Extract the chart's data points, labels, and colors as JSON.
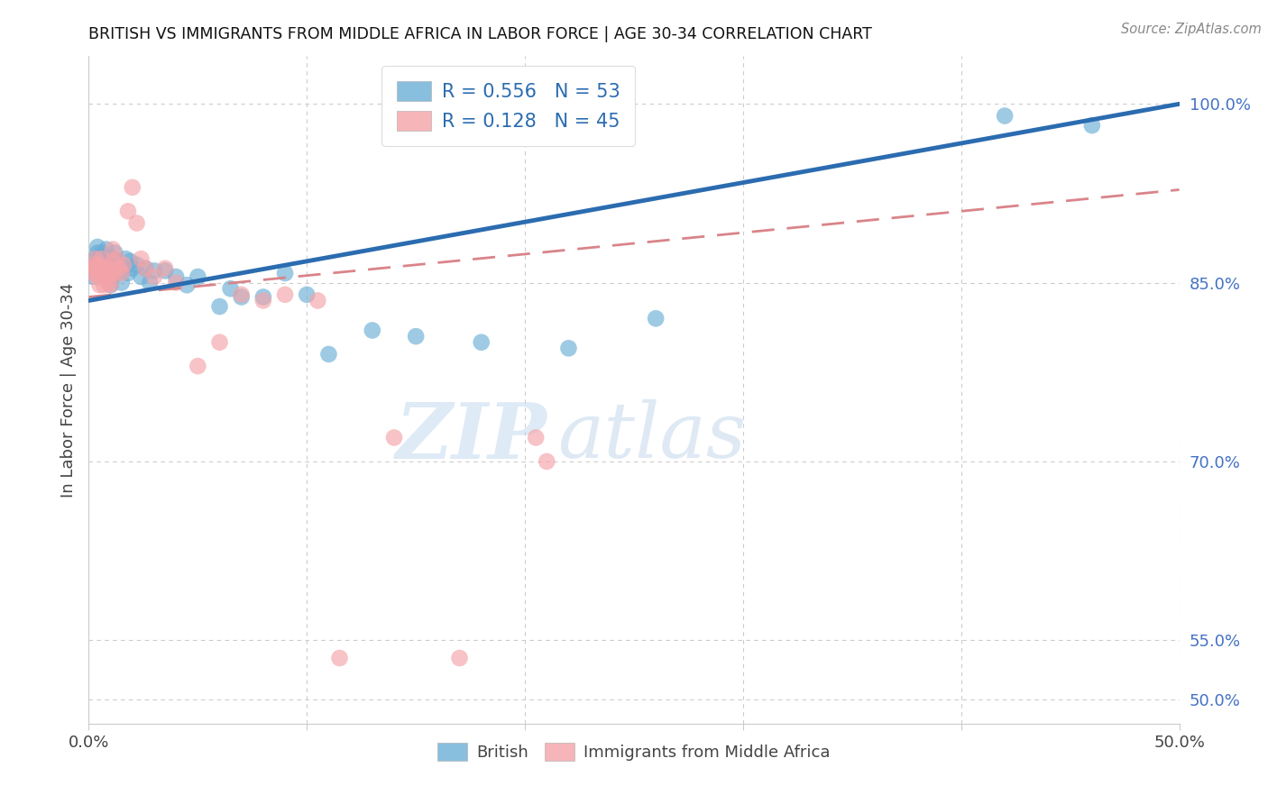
{
  "title": "BRITISH VS IMMIGRANTS FROM MIDDLE AFRICA IN LABOR FORCE | AGE 30-34 CORRELATION CHART",
  "source": "Source: ZipAtlas.com",
  "ylabel": "In Labor Force | Age 30-34",
  "xlim": [
    0.0,
    0.5
  ],
  "ylim": [
    0.48,
    1.04
  ],
  "xticks": [
    0.0,
    0.1,
    0.2,
    0.3,
    0.4,
    0.5
  ],
  "xtick_labels": [
    "0.0%",
    "",
    "",
    "",
    "",
    "50.0%"
  ],
  "ytick_labels_right": [
    "50.0%",
    "55.0%",
    "70.0%",
    "85.0%",
    "100.0%"
  ],
  "ytick_vals_right": [
    0.5,
    0.55,
    0.7,
    0.85,
    1.0
  ],
  "blue_R": 0.556,
  "blue_N": 53,
  "pink_R": 0.128,
  "pink_N": 45,
  "blue_color": "#6baed6",
  "pink_color": "#f4a3a8",
  "trendline_blue": "#2b6cb0",
  "trendline_pink": "#d9848a",
  "watermark_zip": "ZIP",
  "watermark_atlas": "atlas",
  "blue_intercept": 0.835,
  "blue_slope": 0.33,
  "pink_intercept": 0.838,
  "pink_slope": 0.18,
  "british_x": [
    0.002,
    0.003,
    0.003,
    0.004,
    0.004,
    0.004,
    0.005,
    0.005,
    0.006,
    0.006,
    0.007,
    0.007,
    0.008,
    0.008,
    0.009,
    0.009,
    0.01,
    0.01,
    0.011,
    0.011,
    0.012,
    0.012,
    0.013,
    0.014,
    0.015,
    0.016,
    0.017,
    0.018,
    0.019,
    0.02,
    0.022,
    0.024,
    0.026,
    0.028,
    0.03,
    0.035,
    0.04,
    0.045,
    0.05,
    0.06,
    0.065,
    0.07,
    0.08,
    0.09,
    0.1,
    0.11,
    0.13,
    0.15,
    0.18,
    0.22,
    0.26,
    0.42,
    0.46
  ],
  "british_y": [
    0.855,
    0.87,
    0.865,
    0.875,
    0.862,
    0.88,
    0.858,
    0.87,
    0.865,
    0.875,
    0.862,
    0.858,
    0.87,
    0.878,
    0.86,
    0.872,
    0.848,
    0.862,
    0.855,
    0.87,
    0.858,
    0.875,
    0.868,
    0.862,
    0.85,
    0.862,
    0.87,
    0.858,
    0.868,
    0.862,
    0.865,
    0.855,
    0.862,
    0.85,
    0.86,
    0.86,
    0.855,
    0.848,
    0.855,
    0.83,
    0.845,
    0.838,
    0.838,
    0.858,
    0.84,
    0.79,
    0.81,
    0.805,
    0.8,
    0.795,
    0.82,
    0.99,
    0.982
  ],
  "pink_x": [
    0.002,
    0.002,
    0.003,
    0.003,
    0.004,
    0.004,
    0.005,
    0.005,
    0.005,
    0.006,
    0.006,
    0.007,
    0.007,
    0.008,
    0.008,
    0.009,
    0.009,
    0.01,
    0.01,
    0.011,
    0.011,
    0.012,
    0.013,
    0.014,
    0.015,
    0.016,
    0.018,
    0.02,
    0.022,
    0.024,
    0.026,
    0.03,
    0.035,
    0.04,
    0.05,
    0.06,
    0.07,
    0.08,
    0.09,
    0.105,
    0.115,
    0.14,
    0.17,
    0.205,
    0.21
  ],
  "pink_y": [
    0.858,
    0.862,
    0.865,
    0.87,
    0.855,
    0.862,
    0.848,
    0.858,
    0.865,
    0.862,
    0.87,
    0.848,
    0.858,
    0.855,
    0.862,
    0.85,
    0.862,
    0.848,
    0.858,
    0.868,
    0.878,
    0.858,
    0.87,
    0.862,
    0.858,
    0.865,
    0.91,
    0.93,
    0.9,
    0.87,
    0.862,
    0.855,
    0.862,
    0.85,
    0.78,
    0.8,
    0.84,
    0.835,
    0.84,
    0.835,
    0.535,
    0.72,
    0.535,
    0.72,
    0.7
  ]
}
